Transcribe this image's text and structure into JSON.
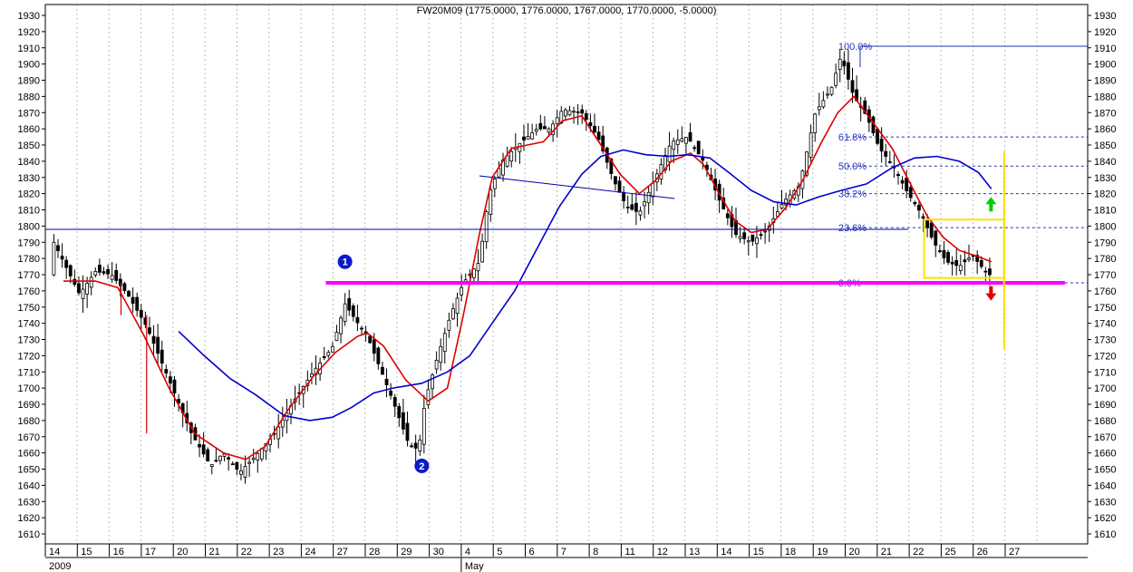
{
  "chart_data": {
    "type": "candlestick",
    "title": "FW20M09 (1775.0000, 1776.0000, 1767.0000, 1770.0000, -5.0000)",
    "ylim": [
      1600,
      1935
    ],
    "y_ticks": [
      1610,
      1620,
      1630,
      1640,
      1650,
      1660,
      1670,
      1680,
      1690,
      1700,
      1710,
      1720,
      1730,
      1740,
      1750,
      1760,
      1770,
      1780,
      1790,
      1800,
      1810,
      1820,
      1830,
      1840,
      1850,
      1860,
      1870,
      1880,
      1890,
      1900,
      1910,
      1920,
      1930
    ],
    "x_day_labels": [
      "14",
      "15",
      "16",
      "17",
      "20",
      "21",
      "22",
      "23",
      "24",
      "27",
      "28",
      "29",
      "30",
      "4",
      "5",
      "6",
      "7",
      "8",
      "11",
      "12",
      "13",
      "14",
      "15",
      "18",
      "19",
      "20",
      "21",
      "22",
      "25",
      "26",
      "27"
    ],
    "x_month_labels": [
      "2009",
      "May"
    ],
    "grid": "vertical-dotted",
    "series": [
      {
        "type": "ma_fast",
        "color": "#dd0000",
        "values": [
          [
            0.0,
            1766
          ],
          [
            1.0,
            1766
          ],
          [
            1.7,
            1762
          ],
          [
            2.5,
            1733
          ],
          [
            3.3,
            1700
          ],
          [
            4.1,
            1672
          ],
          [
            5.0,
            1660
          ],
          [
            5.7,
            1656
          ],
          [
            6.3,
            1664
          ],
          [
            7.0,
            1686
          ],
          [
            7.8,
            1707
          ],
          [
            8.5,
            1722
          ],
          [
            9.2,
            1732
          ],
          [
            9.5,
            1734
          ],
          [
            10.0,
            1726
          ],
          [
            10.7,
            1705
          ],
          [
            11.4,
            1692
          ],
          [
            12.0,
            1700
          ],
          [
            12.5,
            1745
          ],
          [
            13.0,
            1795
          ],
          [
            13.4,
            1830
          ],
          [
            14.0,
            1848
          ],
          [
            14.5,
            1850
          ],
          [
            15.0,
            1852
          ],
          [
            15.6,
            1865
          ],
          [
            16.2,
            1868
          ],
          [
            16.8,
            1850
          ],
          [
            17.4,
            1832
          ],
          [
            18.0,
            1820
          ],
          [
            18.5,
            1828
          ],
          [
            19.0,
            1840
          ],
          [
            19.6,
            1845
          ],
          [
            20.0,
            1838
          ],
          [
            20.5,
            1820
          ],
          [
            21.0,
            1803
          ],
          [
            21.5,
            1796
          ],
          [
            22.0,
            1798
          ],
          [
            22.6,
            1812
          ],
          [
            23.1,
            1828
          ],
          [
            23.7,
            1852
          ],
          [
            24.2,
            1870
          ],
          [
            24.7,
            1880
          ],
          [
            25.3,
            1864
          ],
          [
            25.9,
            1848
          ],
          [
            26.5,
            1825
          ],
          [
            27.0,
            1806
          ],
          [
            27.5,
            1793
          ],
          [
            28.0,
            1785
          ],
          [
            28.6,
            1781
          ],
          [
            29.0,
            1778
          ]
        ]
      },
      {
        "type": "ma_slow",
        "color": "#0000cc",
        "values": [
          [
            3.6,
            1735
          ],
          [
            4.4,
            1720
          ],
          [
            5.2,
            1706
          ],
          [
            6.0,
            1696
          ],
          [
            6.9,
            1683
          ],
          [
            7.7,
            1680
          ],
          [
            8.4,
            1682
          ],
          [
            9.0,
            1688
          ],
          [
            9.7,
            1697
          ],
          [
            10.3,
            1700
          ],
          [
            11.2,
            1703
          ],
          [
            12.0,
            1710
          ],
          [
            12.7,
            1720
          ],
          [
            13.4,
            1740
          ],
          [
            14.1,
            1760
          ],
          [
            14.8,
            1786
          ],
          [
            15.5,
            1812
          ],
          [
            16.2,
            1832
          ],
          [
            16.8,
            1843
          ],
          [
            17.5,
            1847
          ],
          [
            18.2,
            1844
          ],
          [
            18.9,
            1843
          ],
          [
            19.5,
            1844
          ],
          [
            20.2,
            1842
          ],
          [
            20.8,
            1833
          ],
          [
            21.5,
            1822
          ],
          [
            22.2,
            1815
          ],
          [
            22.9,
            1813
          ],
          [
            23.6,
            1818
          ],
          [
            24.3,
            1822
          ],
          [
            25.1,
            1826
          ],
          [
            25.9,
            1836
          ],
          [
            26.6,
            1842
          ],
          [
            27.3,
            1843
          ],
          [
            28.0,
            1840
          ],
          [
            28.6,
            1833
          ],
          [
            29.0,
            1823
          ]
        ]
      },
      {
        "type": "fib_retracement",
        "levels": [
          {
            "label": "100.0%",
            "value": 1911
          },
          {
            "label": "61.8%",
            "value": 1855
          },
          {
            "label": "50.0%",
            "value": 1837
          },
          {
            "label": "38.2%",
            "value": 1820
          },
          {
            "label": "23.6%",
            "value": 1799
          },
          {
            "label": "0.0%",
            "value": 1765
          }
        ]
      },
      {
        "type": "horizontal_line",
        "value": 1798,
        "color": "#0000aa"
      },
      {
        "type": "support_line",
        "value": 1765,
        "color": "#ff00ff"
      },
      {
        "type": "markers",
        "items": [
          {
            "label": "1",
            "x": 8.8,
            "y": 1778
          },
          {
            "label": "2",
            "x": 11.2,
            "y": 1652
          }
        ]
      }
    ]
  }
}
